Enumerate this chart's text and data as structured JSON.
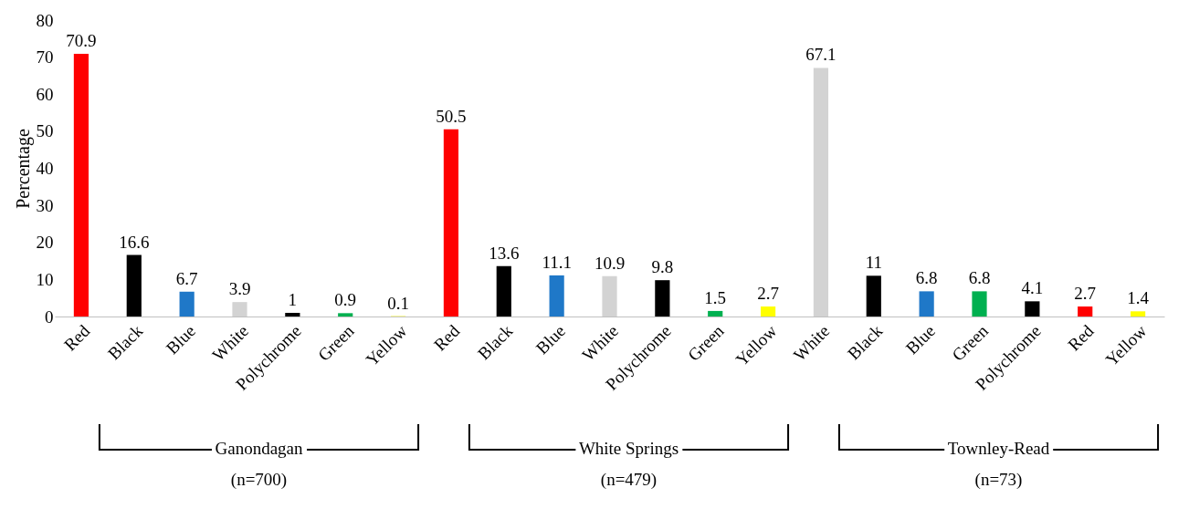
{
  "chart_data": {
    "type": "bar",
    "ylabel": "Percentage",
    "categories": [
      "Red",
      "Black",
      "Blue",
      "White",
      "Polychrome",
      "Green",
      "Yellow",
      "Red",
      "Black",
      "Blue",
      "White",
      "Polychrome",
      "Green",
      "Yellow",
      "White",
      "Black",
      "Blue",
      "Green",
      "Polychrome",
      "Red",
      "Yellow"
    ],
    "values": [
      70.9,
      16.6,
      6.7,
      3.9,
      1,
      0.9,
      0.1,
      50.5,
      13.6,
      11.1,
      10.9,
      9.8,
      1.5,
      2.7,
      67.1,
      11,
      6.8,
      6.8,
      4.1,
      2.7,
      1.4
    ],
    "colors": [
      "#ff0000",
      "#000000",
      "#1f78c8",
      "#d3d3d3",
      "#000000",
      "#00b050",
      "#ffff00",
      "#ff0000",
      "#000000",
      "#1f78c8",
      "#d3d3d3",
      "#000000",
      "#00b050",
      "#ffff00",
      "#d3d3d3",
      "#000000",
      "#1f78c8",
      "#00b050",
      "#000000",
      "#ff0000",
      "#ffff00"
    ],
    "ylim": [
      0,
      80
    ],
    "yticks": [
      0,
      10,
      20,
      30,
      40,
      50,
      60,
      70,
      80
    ],
    "data_labels": true,
    "grid": false,
    "annotations": [
      "Ganondagan",
      "(n=700)",
      "White Springs",
      "(n=479)",
      "Townley-Read",
      "(n=73)"
    ]
  }
}
